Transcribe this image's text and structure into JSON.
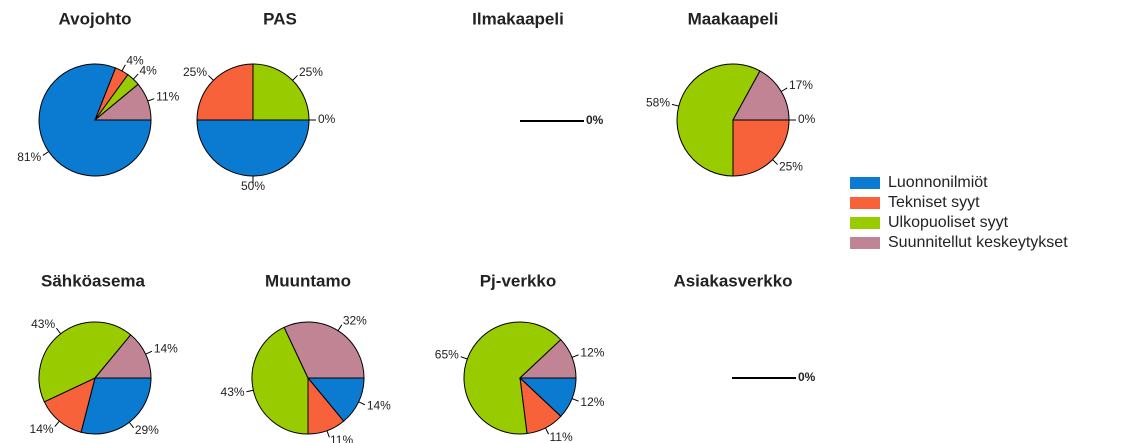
{
  "legend": {
    "labels": [
      "Luonnonilmiöt",
      "Tekniset syyt",
      "Ulkopuoliset syyt",
      "Suunnitellut keskeytykset"
    ],
    "colors": [
      "#0a7bd1",
      "#f7623a",
      "#99cc00",
      "#c08495"
    ]
  },
  "chart_data": [
    {
      "type": "pie",
      "title": "Avojohto",
      "values": [
        81,
        4,
        4,
        11
      ],
      "value_labels": [
        "81%",
        "4%",
        "4%",
        "11%"
      ]
    },
    {
      "type": "pie",
      "title": "PAS",
      "values": [
        50,
        25,
        25,
        0
      ],
      "value_labels": [
        "50%",
        "25%",
        "25%",
        "0%"
      ]
    },
    {
      "type": "pie",
      "title": "Ilmakaapeli",
      "values": [
        0
      ],
      "value_labels": [
        "0%"
      ]
    },
    {
      "type": "pie",
      "title": "Maakaapeli",
      "values": [
        0,
        25,
        58,
        17
      ],
      "value_labels": [
        "0%",
        "25%",
        "58%",
        "17%"
      ]
    },
    {
      "type": "pie",
      "title": "Sähköasema",
      "values": [
        29,
        14,
        43,
        14
      ],
      "value_labels": [
        "29%",
        "14%",
        "43%",
        "14%"
      ]
    },
    {
      "type": "pie",
      "title": "Muuntamo",
      "values": [
        14,
        11,
        43,
        32
      ],
      "value_labels": [
        "14%",
        "11%",
        "43%",
        "32%"
      ]
    },
    {
      "type": "pie",
      "title": "Pj-verkko",
      "values": [
        12,
        11,
        65,
        12
      ],
      "value_labels": [
        "12%",
        "11%",
        "65%",
        "12%"
      ]
    },
    {
      "type": "pie",
      "title": "Asiakasverkko",
      "values": [
        0
      ],
      "value_labels": [
        "0%"
      ]
    }
  ]
}
